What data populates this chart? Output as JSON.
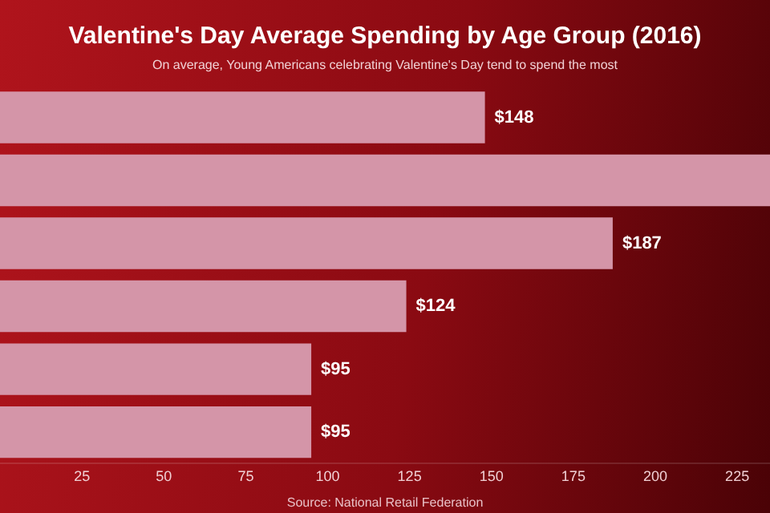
{
  "chart_data": {
    "type": "bar",
    "orientation": "horizontal",
    "title": "Valentine's Day Average Spending by Age Group (2016)",
    "subtitle": "On average, Young Americans celebrating Valentine's Day tend to spend the most",
    "categories": [
      null,
      null,
      null,
      null,
      null,
      null
    ],
    "values": [
      148,
      235,
      187,
      124,
      95,
      95
    ],
    "value_labels": [
      "$148",
      null,
      "$187",
      "$124",
      "$95",
      "$95"
    ],
    "color": "#d495a8",
    "xlim": [
      0,
      235
    ],
    "xticks": [
      25,
      50,
      75,
      100,
      125,
      150,
      175,
      200,
      225
    ],
    "grid": false,
    "legend": false,
    "tick_labels": "x",
    "annotations": [
      "Source: National Retail Federation"
    ]
  }
}
